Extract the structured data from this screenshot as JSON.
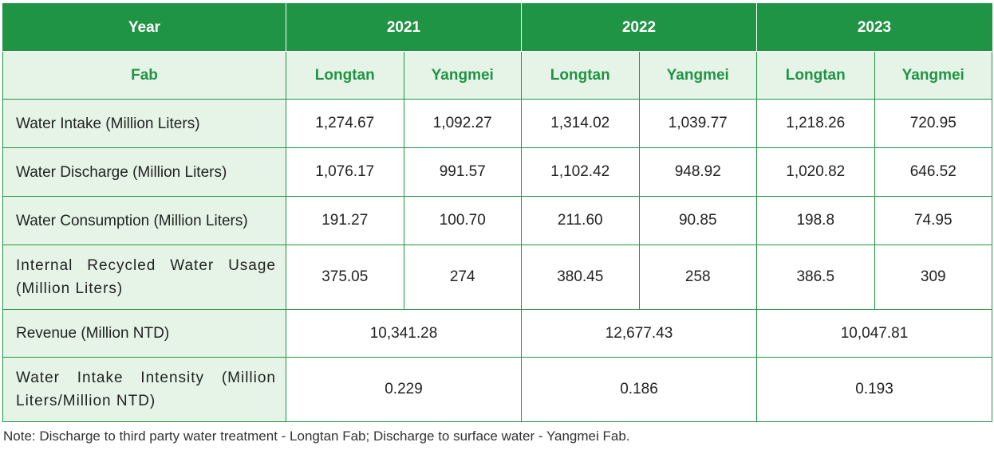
{
  "header": {
    "year_label": "Year",
    "years": [
      "2021",
      "2022",
      "2023"
    ]
  },
  "subheader": {
    "fab_label": "Fab",
    "fabs": [
      "Longtan",
      "Yangmei",
      "Longtan",
      "Yangmei",
      "Longtan",
      "Yangmei"
    ]
  },
  "rows": [
    {
      "label": "Water Intake (Million Liters)",
      "values": [
        "1,274.67",
        "1,092.27",
        "1,314.02",
        "1,039.77",
        "1,218.26",
        "720.95"
      ]
    },
    {
      "label": "Water Discharge (Million Liters)",
      "values": [
        "1,076.17",
        "991.57",
        "1,102.42",
        "948.92",
        "1,020.82",
        "646.52"
      ]
    },
    {
      "label": "Water Consumption (Million Liters)",
      "values": [
        "191.27",
        "100.70",
        "211.60",
        "90.85",
        "198.8",
        "74.95"
      ]
    },
    {
      "label": "Internal Recycled Water Usage (Million Liters)",
      "values": [
        "375.05",
        "274",
        "380.45",
        "258",
        "386.5",
        "309"
      ]
    }
  ],
  "merged_rows": [
    {
      "label": "Revenue (Million NTD)",
      "values": [
        "10,341.28",
        "12,677.43",
        "10,047.81"
      ]
    },
    {
      "label": "Water Intake Intensity (Million Liters/Million NTD)",
      "values": [
        "0.229",
        "0.186",
        "0.193"
      ]
    }
  ],
  "note": "Note: Discharge to third party water treatment - Longtan Fab; Discharge to surface water - Yangmei Fab.",
  "colors": {
    "header_green": "#1f9444",
    "label_bg": "#e6f4e8"
  }
}
